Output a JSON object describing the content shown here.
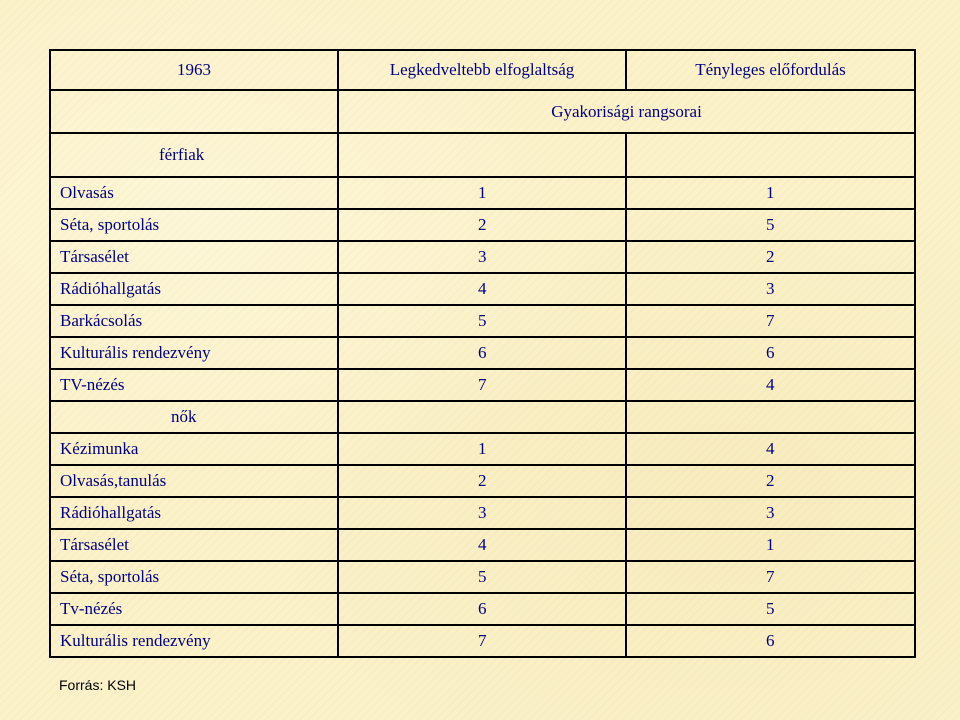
{
  "table": {
    "header": {
      "year": "1963",
      "col1": "Legkedveltebb elfoglaltság",
      "col2": "Tényleges előfordulás",
      "subheader": "Gyakorisági rangsorai"
    },
    "groups": [
      {
        "label": "férfiak",
        "rows": [
          {
            "name": "Olvasás",
            "pref": "1",
            "actual": "1"
          },
          {
            "name": "Séta, sportolás",
            "pref": "2",
            "actual": "5"
          },
          {
            "name": "Társasélet",
            "pref": "3",
            "actual": "2"
          },
          {
            "name": "Rádióhallgatás",
            "pref": "4",
            "actual": "3"
          },
          {
            "name": "Barkácsolás",
            "pref": "5",
            "actual": "7"
          },
          {
            "name": "Kulturális rendezvény",
            "pref": "6",
            "actual": "6"
          },
          {
            "name": "TV-nézés",
            "pref": "7",
            "actual": "4"
          }
        ]
      },
      {
        "label": "nők",
        "rows": [
          {
            "name": "Kézimunka",
            "pref": "1",
            "actual": "4"
          },
          {
            "name": "Olvasás,tanulás",
            "pref": "2",
            "actual": "2"
          },
          {
            "name": "Rádióhallgatás",
            "pref": "3",
            "actual": "3"
          },
          {
            "name": "Társasélet",
            "pref": "4",
            "actual": "1"
          },
          {
            "name": "Séta, sportolás",
            "pref": "5",
            "actual": "7"
          },
          {
            "name": "Tv-nézés",
            "pref": "6",
            "actual": "5"
          },
          {
            "name": "Kulturális rendezvény",
            "pref": "7",
            "actual": "6"
          }
        ]
      }
    ]
  },
  "source": "Forrás: KSH",
  "colors": {
    "text": "#000080",
    "border": "#000000",
    "background": "#fbf1c8"
  }
}
